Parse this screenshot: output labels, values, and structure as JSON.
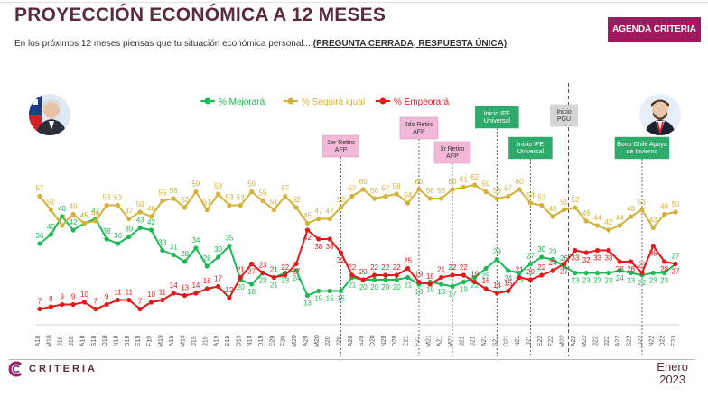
{
  "header": {
    "title": "PROYECCIÓN ECONÓMICA A 12 MESES",
    "subtitle": "En los próximos 12 meses piensas que tu situación económica personal...",
    "question_note": "(PREGUNTA CERRADA, RESPUESTA ÚNICA)",
    "badge": "AGENDA CRITERIA"
  },
  "footer": {
    "logo_text": "CRITERIA",
    "month": "Enero",
    "year": "2023"
  },
  "chart_data": {
    "type": "line",
    "colors": {
      "mejorara": "#1db954",
      "seguira": "#d4b23a",
      "empeorara": "#e41919"
    },
    "x": [
      "A18",
      "M18",
      "J18",
      "J18",
      "A18",
      "S18",
      "O18",
      "N18",
      "D18",
      "E19",
      "F19",
      "M19",
      "A19",
      "M19",
      "J19",
      "J19",
      "A19",
      "S19",
      "O19",
      "N19",
      "D19",
      "E20",
      "F20",
      "M20",
      "A20",
      "M20",
      "J20",
      "J20",
      "A20",
      "S20",
      "O20",
      "N20",
      "D20",
      "E21",
      "F21",
      "M21",
      "A21",
      "M21",
      "J21",
      "J21",
      "A21",
      "S21",
      "O21",
      "N21",
      "D21",
      "E22",
      "F22",
      "M22",
      "A22",
      "M22",
      "J22",
      "J22",
      "A22",
      "S22",
      "O22",
      "N22",
      "D22",
      "E23"
    ],
    "x_tick_labels": [
      "A18",
      "M18",
      "J18",
      "J18",
      "A18",
      "S18",
      "O18",
      "N18",
      "D18",
      "E19",
      "F19",
      "M19",
      "A19",
      "M19",
      "J19",
      "J19",
      "A19",
      "S19",
      "O19",
      "N19",
      "D19",
      "E20",
      "F20",
      "M20",
      "A20",
      "M20",
      "J20",
      "J20",
      "A20",
      "S20",
      "O20",
      "N20",
      "D20",
      "E21",
      "F21",
      "M21",
      "A21",
      "M21",
      "J21",
      "J21",
      "A21",
      "S21",
      "O21",
      "N21",
      "D21",
      "E22",
      "F22",
      "M22",
      "A22",
      "M22",
      "J22",
      "J22",
      "A22",
      "S22",
      "O22",
      "N22",
      "D22",
      "E23"
    ],
    "ylim": [
      0,
      70
    ],
    "series": [
      {
        "name": "% Mejorará",
        "key": "mejorara",
        "values": [
          36,
          40,
          48,
          42,
          45,
          47,
          38,
          36,
          39,
          43,
          42,
          33,
          31,
          28,
          34,
          26,
          30,
          35,
          20,
          18,
          23,
          21,
          23,
          24,
          13,
          15,
          15,
          15,
          21,
          20,
          20,
          20,
          20,
          21,
          18,
          19,
          18,
          17,
          19,
          21,
          25,
          29,
          24,
          23,
          27,
          30,
          29,
          26,
          23,
          23,
          23,
          23,
          24,
          23,
          22,
          23,
          23,
          27
        ],
        "labels": [
          "36",
          "40",
          "48",
          "42",
          "45",
          "47",
          "38",
          "36",
          "39",
          "43",
          "42",
          "33",
          "31",
          "28",
          "34",
          "26",
          "30",
          "35",
          "20",
          "18",
          "23",
          "21",
          "23",
          "24",
          "13",
          "15",
          "15",
          "15",
          "21",
          "20",
          "20",
          "20",
          "20",
          "21",
          "18",
          "19",
          "18",
          "17",
          "19",
          "21",
          "25",
          "29",
          "24",
          "23",
          "27",
          "30",
          "29",
          "26",
          "23",
          "23",
          "23",
          "23",
          "24",
          "23",
          "22",
          "23",
          "23",
          "27"
        ]
      },
      {
        "name": "% Seguirá igual",
        "key": "seguira",
        "values": [
          57,
          51,
          44,
          49,
          45,
          46,
          53,
          53,
          47,
          50,
          48,
          55,
          56,
          52,
          59,
          51,
          58,
          53,
          53,
          59,
          55,
          51,
          57,
          52,
          45,
          47,
          47,
          52,
          57,
          60,
          56,
          57,
          58,
          54,
          60,
          56,
          56,
          60,
          61,
          62,
          59,
          56,
          57,
          60,
          54,
          53,
          48,
          51,
          52,
          46,
          44,
          42,
          44,
          48,
          51,
          43,
          49,
          50
        ],
        "labels": [
          "57",
          "51",
          "44",
          "49",
          "45",
          "46",
          "53",
          "53",
          "47",
          "50",
          "48",
          "55",
          "56",
          "52",
          "59",
          "51",
          "58",
          "53",
          "53",
          "59",
          "55",
          "51",
          "57",
          "52",
          "45",
          "47",
          "47",
          "52",
          "57",
          "60",
          "56",
          "57",
          "58",
          "54",
          "60",
          "56",
          "56",
          "60",
          "61",
          "62",
          "59",
          "56",
          "57",
          "60",
          "54",
          "53",
          "48",
          "51",
          "52",
          "46",
          "44",
          "42",
          "44",
          "48",
          "51",
          "43",
          "49",
          "50"
        ]
      },
      {
        "name": "% Empeorará",
        "key": "empeorara",
        "values": [
          7,
          8,
          9,
          9,
          10,
          7,
          9,
          11,
          11,
          7,
          10,
          11,
          14,
          13,
          14,
          16,
          17,
          12,
          21,
          27,
          23,
          21,
          22,
          27,
          42,
          38,
          38,
          32,
          22,
          20,
          22,
          22,
          22,
          25,
          19,
          18,
          21,
          22,
          22,
          19,
          16,
          14,
          15,
          21,
          20,
          22,
          24,
          27,
          33,
          32,
          33,
          33,
          28,
          28,
          23,
          35,
          28,
          27
        ],
        "labels": [
          "7",
          "8",
          "9",
          "9",
          "10",
          "7",
          "9",
          "11",
          "11",
          "7",
          "10",
          "11",
          "14",
          "13",
          "14",
          "16",
          "17",
          "12",
          "21",
          "27",
          "23",
          "21",
          "22",
          "27",
          "42",
          "38",
          "38",
          "32",
          "22",
          "20",
          "22",
          "22",
          "22",
          "25",
          "19",
          "18",
          "21",
          "22",
          "22",
          "19",
          "16",
          "14",
          "15",
          "21",
          "20",
          "22",
          "24",
          "27",
          "33",
          "32",
          "33",
          "33",
          "28",
          "28",
          "23",
          "35",
          "28",
          "27"
        ]
      }
    ],
    "annotations": [
      {
        "text": "1er Retiro AFP",
        "at": 27,
        "style": "pink"
      },
      {
        "text": "2do Retiro AFP",
        "at": 34,
        "style": "pink"
      },
      {
        "text": "3r Retiro AFP",
        "at": 37,
        "style": "pink"
      },
      {
        "text": "Inicio IFE Universal",
        "at": 41,
        "style": "green"
      },
      {
        "text": "Inicio IFE Universal",
        "at": 44,
        "style": "green"
      },
      {
        "text": "Inicio PGU",
        "at": 47,
        "style": "gray"
      },
      {
        "text": "Bono Chile Apoya de Invierno",
        "at": 54,
        "style": "green"
      }
    ],
    "legend_position": "top"
  }
}
